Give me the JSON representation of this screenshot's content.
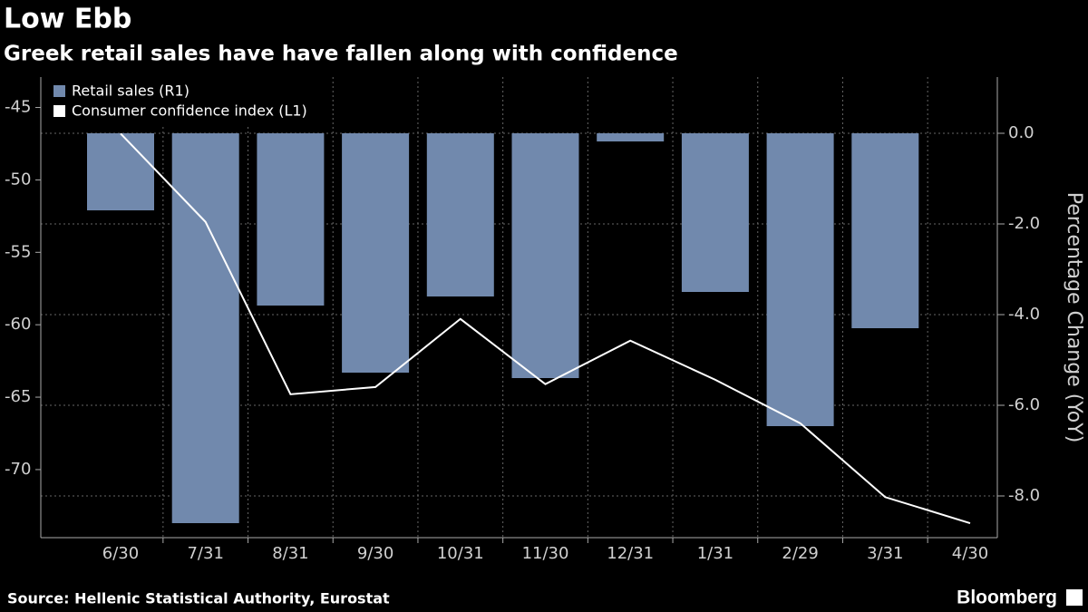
{
  "chart_data": {
    "type": "bar",
    "title": "Low Ebb",
    "subtitle": "Greek retail sales have have fallen along with confidence",
    "source": "Source: Hellenic Statistical Authority, Eurostat",
    "brand": "Bloomberg",
    "categories": [
      "6/30",
      "7/31",
      "8/31",
      "9/30",
      "10/31",
      "11/30",
      "12/31",
      "1/31",
      "2/29",
      "3/31",
      "4/30"
    ],
    "series": [
      {
        "name": "Retail sales (R1)",
        "type": "bar",
        "axis": "y2",
        "color": "#7189ad",
        "values": [
          -1.7,
          -8.6,
          -3.8,
          -5.28,
          -3.6,
          -5.4,
          -0.18,
          -3.5,
          -6.46,
          -4.3,
          null
        ]
      },
      {
        "name": "Consumer confidence index (L1)",
        "type": "line",
        "axis": "y",
        "color": "#ffffff",
        "values": [
          -46.8,
          -52.9,
          -64.8,
          -64.3,
          -59.6,
          -64.1,
          -61.1,
          -63.8,
          -66.8,
          -71.9,
          -73.7
        ]
      }
    ],
    "ylim": [
      -74.7,
      -42.9
    ],
    "yticks": [
      -45,
      -50,
      -55,
      -60,
      -65,
      -70
    ],
    "y2lim": [
      -8.92,
      1.24
    ],
    "y2ticks": [
      {
        "value": 0,
        "label": "0.0"
      },
      {
        "value": -2,
        "label": "-2.0"
      },
      {
        "value": -4,
        "label": "-4.0"
      },
      {
        "value": -6,
        "label": "-6.0"
      },
      {
        "value": -8,
        "label": "-8.0"
      }
    ],
    "y2label": "Percentage Change (YoY)",
    "grid": true,
    "legend": "top-left"
  }
}
